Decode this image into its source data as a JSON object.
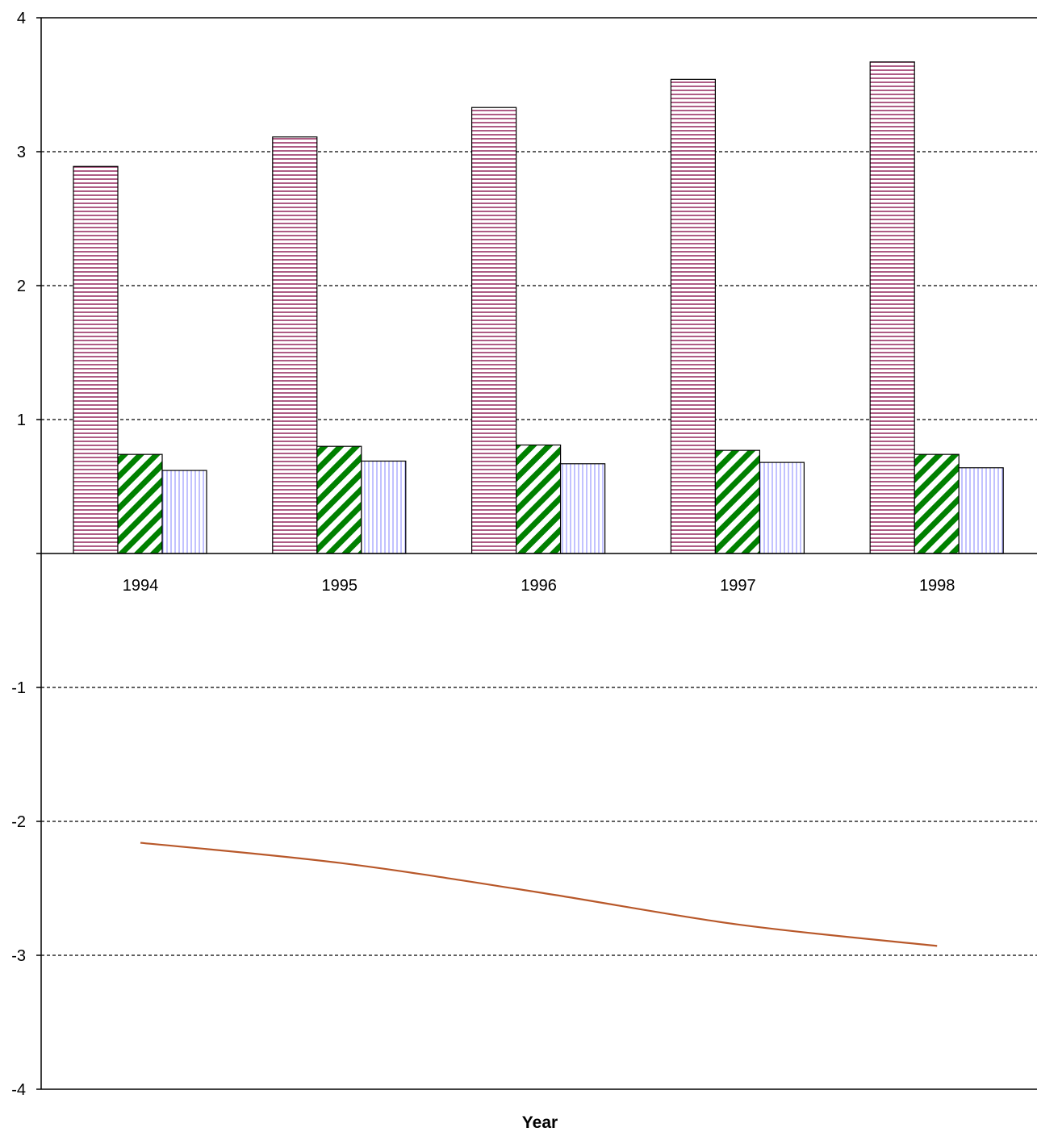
{
  "chart_data": {
    "type": "bar",
    "categories": [
      "1994",
      "1995",
      "1996",
      "1997",
      "1998"
    ],
    "series": [
      {
        "values": [
          2.89,
          3.11,
          3.33,
          3.54,
          3.67
        ],
        "color": "#993366",
        "pattern": "horizontal-stripes"
      },
      {
        "values": [
          0.74,
          0.8,
          0.81,
          0.77,
          0.74
        ],
        "color": "#008000",
        "pattern": "diagonal-stripes"
      },
      {
        "values": [
          0.62,
          0.69,
          0.67,
          0.68,
          0.64
        ],
        "color": "#9999FF",
        "pattern": "vertical-stripes"
      },
      {
        "type": "line",
        "values": [
          -2.16,
          -2.31,
          -2.53,
          -2.77,
          -2.93
        ],
        "color": "#B8582A"
      }
    ],
    "xlabel": "Year",
    "ylabel": "",
    "ylim": [
      -4,
      4
    ],
    "yticks": [
      "-4",
      "-3",
      "-2",
      "-1",
      "1",
      "2",
      "3",
      "4"
    ],
    "grid": true
  }
}
